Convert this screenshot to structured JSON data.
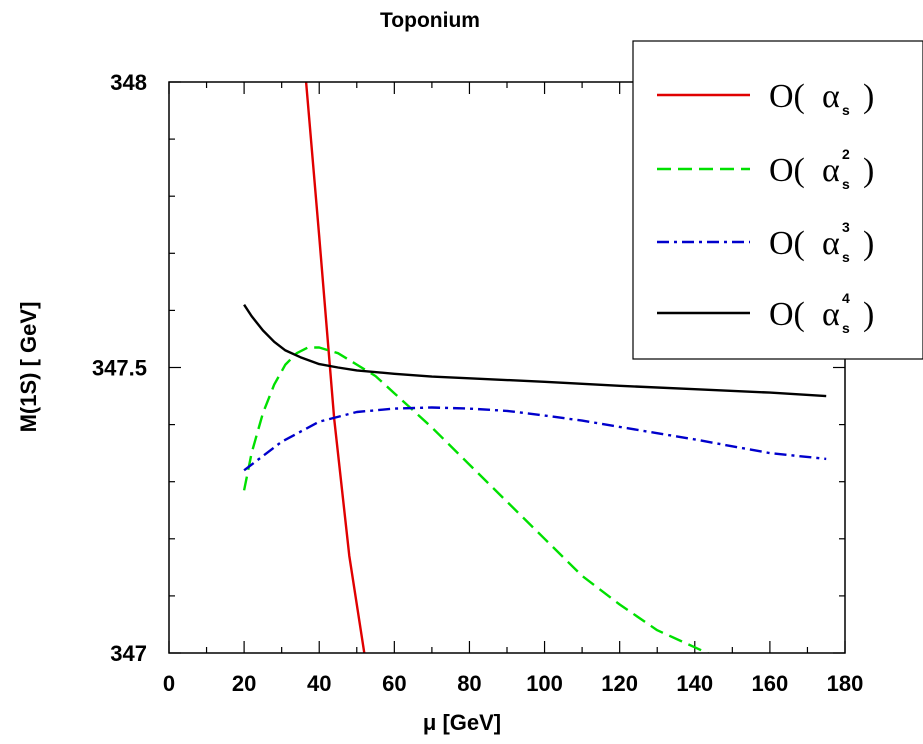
{
  "chart_data": {
    "type": "line",
    "title": "Toponium",
    "xlabel": "μ [GeV]",
    "ylabel": "M(1S)  [ GeV]",
    "xlim": [
      0,
      180
    ],
    "ylim": [
      347,
      348
    ],
    "xticks": [
      "0",
      "20",
      "40",
      "60",
      "80",
      "100",
      "120",
      "140",
      "160",
      "180"
    ],
    "yticks": [
      "347",
      "347.5",
      "348"
    ],
    "legend_position": "top-right",
    "series": [
      {
        "name": "O( αs )",
        "legend": {
          "pre": "O(",
          "sym": "α",
          "sub": "s",
          "sup": "",
          "post": ")"
        },
        "color": "#e00000",
        "dash": "",
        "x": [
          36.5,
          40,
          44,
          48,
          52
        ],
        "y": [
          348.0,
          347.73,
          347.41,
          347.17,
          347.0
        ]
      },
      {
        "name": "O( αs² )",
        "legend": {
          "pre": "O(",
          "sym": "α",
          "sub": "s",
          "sup": "2",
          "post": ")"
        },
        "color": "#00e000",
        "dash": "14,7",
        "x": [
          20,
          22,
          25,
          28,
          31,
          34,
          37,
          40,
          45,
          50,
          55,
          60,
          70,
          80,
          90,
          100,
          110,
          120,
          130,
          140,
          145
        ],
        "y": [
          347.285,
          347.35,
          347.42,
          347.47,
          347.505,
          347.525,
          347.535,
          347.535,
          347.525,
          347.505,
          347.485,
          347.455,
          347.395,
          347.33,
          347.265,
          347.2,
          347.135,
          347.085,
          347.04,
          347.01,
          346.995
        ]
      },
      {
        "name": "O( αs³ )",
        "legend": {
          "pre": "O(",
          "sym": "α",
          "sub": "s",
          "sup": "3",
          "post": ")"
        },
        "color": "#0000cc",
        "dash": "12,5,3,5",
        "x": [
          20,
          25,
          30,
          40,
          50,
          60,
          70,
          80,
          90,
          100,
          110,
          120,
          130,
          140,
          150,
          160,
          175
        ],
        "y": [
          347.32,
          347.345,
          347.37,
          347.405,
          347.422,
          347.428,
          347.43,
          347.428,
          347.424,
          347.416,
          347.407,
          347.396,
          347.385,
          347.374,
          347.362,
          347.35,
          347.34
        ]
      },
      {
        "name": "O( αs⁴ )",
        "legend": {
          "pre": "O(",
          "sym": "α",
          "sub": "s",
          "sup": "4",
          "post": ")"
        },
        "color": "#000000",
        "dash": "",
        "x": [
          20,
          22,
          25,
          28,
          31,
          35,
          40,
          45,
          50,
          60,
          70,
          80,
          100,
          120,
          140,
          160,
          175
        ],
        "y": [
          347.61,
          347.59,
          347.565,
          347.545,
          347.53,
          347.518,
          347.506,
          347.5,
          347.495,
          347.489,
          347.484,
          347.481,
          347.475,
          347.468,
          347.462,
          347.456,
          347.45
        ]
      }
    ]
  }
}
